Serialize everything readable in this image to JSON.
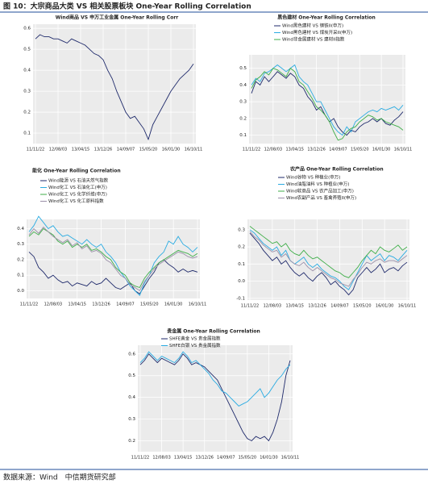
{
  "figure_title": "图 10：大宗商品大类 VS 相关股票板块 One-Year Rolling Correlation",
  "source": "数据来源：Wind　中信期货研究部",
  "chart_data": [
    {
      "type": "line",
      "title": "Wind商品 VS 申万工业金属 One-Year Rolling Corr",
      "categories": [
        "11/11/22",
        null,
        null,
        null,
        null,
        "12/08/03",
        null,
        null,
        null,
        null,
        "13/04/15",
        null,
        null,
        null,
        null,
        "13/12/26",
        null,
        null,
        null,
        null,
        "14/09/07",
        null,
        null,
        null,
        null,
        "15/05/20",
        null,
        null,
        null,
        null,
        "16/01/30",
        null,
        null,
        null,
        null,
        "16/10/11"
      ],
      "series": [
        {
          "name": null,
          "color": "#1f2a6b",
          "values": [
            0.55,
            0.57,
            0.56,
            0.56,
            0.55,
            0.55,
            0.54,
            0.53,
            0.55,
            0.54,
            0.53,
            0.52,
            0.5,
            0.48,
            0.47,
            0.45,
            0.4,
            0.36,
            0.3,
            0.25,
            0.2,
            0.17,
            0.18,
            0.15,
            0.12,
            0.07,
            0.14,
            0.18,
            0.22,
            0.26,
            0.3,
            0.33,
            0.36,
            0.38,
            0.4,
            0.43
          ]
        }
      ],
      "ylim": [
        0.05,
        0.62
      ],
      "yticks": [
        0.1,
        0.2,
        0.3,
        0.4,
        0.5,
        0.6
      ],
      "grid": true
    },
    {
      "type": "line",
      "title": "黑色建材 One-Year Rolling Correlation",
      "categories": [
        "11/11/22",
        null,
        null,
        null,
        null,
        "12/08/03",
        null,
        null,
        null,
        null,
        "13/04/15",
        null,
        null,
        null,
        null,
        "13/12/26",
        null,
        null,
        null,
        null,
        "14/09/07",
        null,
        null,
        null,
        null,
        "15/05/20",
        null,
        null,
        null,
        null,
        "16/01/30",
        null,
        null,
        null,
        null,
        "16/10/11"
      ],
      "series": [
        {
          "name": "Wind黑色建材 VS 钢铁II(申万)",
          "color": "#1f2a6b",
          "values": [
            0.35,
            0.42,
            0.4,
            0.45,
            0.42,
            0.45,
            0.48,
            0.46,
            0.44,
            0.47,
            0.45,
            0.4,
            0.38,
            0.33,
            0.3,
            0.25,
            0.27,
            0.22,
            0.18,
            0.2,
            0.15,
            0.12,
            0.1,
            0.13,
            0.12,
            0.15,
            0.17,
            0.18,
            0.2,
            0.18,
            0.2,
            0.17,
            0.16,
            0.19,
            0.21,
            0.24
          ]
        },
        {
          "name": "Wind黑色建材 VS 煤炭开采II(申万)",
          "color": "#29abe2",
          "values": [
            0.4,
            0.44,
            0.42,
            0.47,
            0.48,
            0.5,
            0.52,
            0.5,
            0.48,
            0.5,
            0.52,
            0.45,
            0.42,
            0.4,
            0.35,
            0.3,
            0.3,
            0.25,
            0.2,
            0.15,
            0.12,
            0.1,
            0.15,
            0.12,
            0.18,
            0.2,
            0.22,
            0.24,
            0.25,
            0.24,
            0.26,
            0.25,
            0.26,
            0.27,
            0.25,
            0.28
          ]
        },
        {
          "name": "Wind非金属建材 VS 建材II指数",
          "color": "#3fae49",
          "values": [
            0.38,
            0.43,
            0.45,
            0.48,
            0.46,
            0.5,
            0.49,
            0.47,
            0.45,
            0.5,
            0.48,
            0.42,
            0.4,
            0.36,
            0.32,
            0.27,
            0.25,
            0.22,
            0.18,
            0.12,
            0.07,
            0.08,
            0.12,
            0.14,
            0.15,
            0.18,
            0.2,
            0.22,
            0.21,
            0.19,
            0.2,
            0.18,
            0.17,
            0.16,
            0.15,
            0.13
          ]
        }
      ],
      "ylim": [
        0.05,
        0.58
      ],
      "yticks": [
        0.1,
        0.2,
        0.3,
        0.4,
        0.5
      ],
      "grid": true
    },
    {
      "type": "line",
      "title": "能化 One-Year Rolling Correlation",
      "categories": [
        "11/11/22",
        null,
        null,
        null,
        null,
        "12/08/03",
        null,
        null,
        null,
        null,
        "13/04/15",
        null,
        null,
        null,
        null,
        "13/12/26",
        null,
        null,
        null,
        null,
        "14/09/07",
        null,
        null,
        null,
        null,
        "15/05/20",
        null,
        null,
        null,
        null,
        "16/01/30",
        null,
        null,
        null,
        null,
        "16/10/11"
      ],
      "series": [
        {
          "name": "Wind能源 VS 石油天然气指数",
          "color": "#1f2a6b",
          "values": [
            0.25,
            0.22,
            0.15,
            0.12,
            0.08,
            0.1,
            0.07,
            0.05,
            0.06,
            0.03,
            0.05,
            0.04,
            0.03,
            0.06,
            0.04,
            0.05,
            0.08,
            0.05,
            0.02,
            0.01,
            0.03,
            0.05,
            0.0,
            -0.02,
            0.03,
            0.08,
            0.12,
            0.18,
            0.2,
            0.17,
            0.15,
            0.12,
            0.14,
            0.12,
            0.13,
            0.12
          ]
        },
        {
          "name": "Wind化工 VS 石油化工(申万)",
          "color": "#29abe2",
          "values": [
            0.38,
            0.42,
            0.48,
            0.44,
            0.4,
            0.42,
            0.38,
            0.35,
            0.36,
            0.34,
            0.32,
            0.3,
            0.33,
            0.3,
            0.28,
            0.3,
            0.25,
            0.22,
            0.18,
            0.12,
            0.08,
            0.03,
            0.0,
            -0.03,
            0.05,
            0.1,
            0.18,
            0.22,
            0.25,
            0.32,
            0.3,
            0.35,
            0.3,
            0.28,
            0.25,
            0.28
          ]
        },
        {
          "name": "Wind化工 VS 化学纤维(申万)",
          "color": "#3fae49",
          "values": [
            0.35,
            0.38,
            0.36,
            0.4,
            0.38,
            0.36,
            0.32,
            0.3,
            0.32,
            0.28,
            0.3,
            0.28,
            0.3,
            0.26,
            0.27,
            0.25,
            0.22,
            0.2,
            0.15,
            0.12,
            0.1,
            0.05,
            0.03,
            0.02,
            0.08,
            0.12,
            0.15,
            0.18,
            0.2,
            0.22,
            0.24,
            0.26,
            0.25,
            0.24,
            0.22,
            0.24
          ]
        },
        {
          "name": "Wind化工 VS 化工原料指数",
          "color": "#9a8fa8",
          "values": [
            0.36,
            0.4,
            0.37,
            0.41,
            0.38,
            0.35,
            0.33,
            0.31,
            0.33,
            0.29,
            0.31,
            0.27,
            0.29,
            0.25,
            0.26,
            0.24,
            0.2,
            0.18,
            0.14,
            0.1,
            0.08,
            0.04,
            0.02,
            0.0,
            0.06,
            0.1,
            0.14,
            0.17,
            0.19,
            0.21,
            0.23,
            0.25,
            0.24,
            0.22,
            0.21,
            0.22
          ]
        }
      ],
      "ylim": [
        -0.05,
        0.46
      ],
      "yticks": [
        {
          "value": 0,
          "label": "0.0"
        },
        0.1,
        0.2,
        0.3,
        0.4
      ],
      "grid": true
    },
    {
      "type": "line",
      "title": "农产品 One-Year Rolling Correlation",
      "categories": [
        "11/11/22",
        null,
        null,
        null,
        null,
        "12/08/03",
        null,
        null,
        null,
        null,
        "13/04/15",
        null,
        null,
        null,
        null,
        "13/12/26",
        null,
        null,
        null,
        null,
        "14/09/07",
        null,
        null,
        null,
        null,
        "15/05/20",
        null,
        null,
        null,
        null,
        "16/01/30",
        null,
        null,
        null,
        null,
        "16/10/11"
      ],
      "series": [
        {
          "name": "Wind谷物 VS 种植业(申万)",
          "color": "#1f2a6b",
          "values": [
            0.28,
            0.25,
            0.22,
            0.18,
            0.15,
            0.12,
            0.14,
            0.1,
            0.12,
            0.08,
            0.05,
            0.03,
            0.05,
            0.02,
            0.0,
            0.03,
            0.05,
            0.02,
            -0.02,
            0.0,
            -0.03,
            -0.05,
            -0.08,
            -0.05,
            0.02,
            0.05,
            0.08,
            0.05,
            0.07,
            0.1,
            0.05,
            0.07,
            0.08,
            0.06,
            0.09,
            0.11
          ]
        },
        {
          "name": "Wind油脂油料 VS 种植业(申万)",
          "color": "#29abe2",
          "values": [
            0.3,
            0.28,
            0.25,
            0.22,
            0.2,
            0.18,
            0.2,
            0.15,
            0.18,
            0.12,
            0.1,
            0.12,
            0.14,
            0.1,
            0.08,
            0.1,
            0.07,
            0.05,
            0.03,
            0.02,
            0.0,
            -0.03,
            -0.05,
            0.0,
            0.05,
            0.1,
            0.15,
            0.12,
            0.14,
            0.16,
            0.12,
            0.15,
            0.14,
            0.12,
            0.15,
            0.18
          ]
        },
        {
          "name": "Wind软商品 VS 农产品加工(申万)",
          "color": "#3fae49",
          "values": [
            0.32,
            0.3,
            0.28,
            0.26,
            0.24,
            0.22,
            0.23,
            0.2,
            0.22,
            0.18,
            0.16,
            0.15,
            0.18,
            0.15,
            0.13,
            0.14,
            0.12,
            0.1,
            0.08,
            0.06,
            0.05,
            0.03,
            0.02,
            0.05,
            0.08,
            0.12,
            0.15,
            0.18,
            0.16,
            0.2,
            0.18,
            0.17,
            0.19,
            0.21,
            0.18,
            0.2
          ]
        },
        {
          "name": "Wind农副产品 VS 畜禽养殖II(申万)",
          "color": "#9a8fa8",
          "values": [
            0.29,
            0.26,
            0.24,
            0.21,
            0.19,
            0.17,
            0.18,
            0.14,
            0.16,
            0.12,
            0.1,
            0.09,
            0.11,
            0.08,
            0.06,
            0.08,
            0.06,
            0.04,
            0.02,
            0.01,
            -0.01,
            -0.02,
            -0.03,
            0.01,
            0.04,
            0.08,
            0.11,
            0.1,
            0.12,
            0.13,
            0.11,
            0.12,
            0.12,
            0.11,
            0.13,
            0.15
          ]
        }
      ],
      "ylim": [
        -0.11,
        0.36
      ],
      "yticks": [
        -0.1,
        {
          "value": 0,
          "label": "0.0"
        },
        0.1,
        0.2,
        0.3
      ],
      "grid": true
    },
    {
      "type": "line",
      "title": "贵金属 One-Year Rolling Correlation",
      "categories": [
        "11/11/22",
        null,
        null,
        null,
        null,
        "12/08/03",
        null,
        null,
        null,
        null,
        "13/04/15",
        null,
        null,
        null,
        null,
        "13/12/26",
        null,
        null,
        null,
        null,
        "14/09/07",
        null,
        null,
        null,
        null,
        "15/05/20",
        null,
        null,
        null,
        null,
        "16/01/30",
        null,
        null,
        null,
        null,
        "16/10/11"
      ],
      "series": [
        {
          "name": "SHFE黄金 VS 贵金属指数",
          "color": "#1f2a6b",
          "values": [
            0.55,
            0.57,
            0.6,
            0.58,
            0.56,
            0.58,
            0.57,
            0.56,
            0.55,
            0.57,
            0.6,
            0.58,
            0.55,
            0.56,
            0.55,
            0.54,
            0.52,
            0.5,
            0.48,
            0.44,
            0.4,
            0.36,
            0.32,
            0.28,
            0.24,
            0.21,
            0.2,
            0.22,
            0.21,
            0.22,
            0.2,
            0.24,
            0.3,
            0.38,
            0.5,
            0.57
          ]
        },
        {
          "name": "SHFE白银 VS 贵金属指数",
          "color": "#29abe2",
          "values": [
            0.56,
            0.58,
            0.61,
            0.59,
            0.57,
            0.59,
            0.58,
            0.57,
            0.56,
            0.58,
            0.61,
            0.59,
            0.56,
            0.57,
            0.55,
            0.53,
            0.51,
            0.48,
            0.46,
            0.43,
            0.42,
            0.4,
            0.38,
            0.36,
            0.37,
            0.38,
            0.4,
            0.42,
            0.44,
            0.4,
            0.42,
            0.45,
            0.48,
            0.5,
            0.53,
            0.55
          ]
        }
      ],
      "ylim": [
        0.15,
        0.64
      ],
      "yticks": [
        0.2,
        0.3,
        0.4,
        0.5,
        0.6
      ],
      "grid": true
    }
  ]
}
